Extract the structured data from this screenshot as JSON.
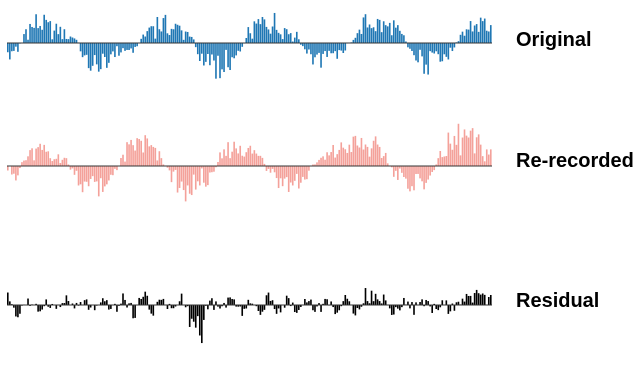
{
  "chart_data": {
    "type": "bar",
    "xlabel": "",
    "ylabel": "",
    "grid": false,
    "legend": "none",
    "x_range": [
      0,
      1
    ],
    "series": [
      {
        "name": "Original",
        "color": "#1f77b4",
        "ylim": [
          -1.3,
          1.0
        ],
        "profile": {
          "x": [
            0,
            0.02,
            0.04,
            0.06,
            0.08,
            0.1,
            0.12,
            0.14,
            0.16,
            0.18,
            0.2,
            0.22,
            0.24,
            0.26,
            0.28,
            0.3,
            0.32,
            0.34,
            0.36,
            0.38,
            0.4,
            0.42,
            0.44,
            0.46,
            0.48,
            0.5,
            0.52,
            0.54,
            0.56,
            0.58,
            0.6,
            0.62,
            0.64,
            0.66,
            0.68,
            0.7,
            0.72,
            0.74,
            0.76,
            0.78,
            0.8,
            0.82,
            0.84,
            0.86,
            0.88,
            0.9,
            0.92,
            0.94,
            0.96,
            0.98,
            1.0
          ],
          "y": [
            -0.45,
            -0.25,
            0.5,
            0.7,
            0.6,
            0.45,
            0.35,
            0.2,
            -0.6,
            -0.8,
            -0.6,
            -0.45,
            -0.3,
            -0.2,
            0.2,
            0.65,
            0.75,
            0.6,
            0.45,
            0.2,
            -0.5,
            -0.8,
            -0.9,
            -0.6,
            -0.3,
            0.4,
            0.65,
            0.8,
            0.65,
            0.45,
            0.2,
            -0.45,
            -0.65,
            -0.55,
            -0.4,
            -0.2,
            0.25,
            0.7,
            0.75,
            0.65,
            0.55,
            0.2,
            -0.4,
            -0.7,
            -0.8,
            -0.6,
            -0.3,
            0.3,
            0.65,
            0.75,
            0.6
          ]
        }
      },
      {
        "name": "Re-recorded",
        "color": "#f4a19a",
        "ylim": [
          -1.3,
          1.1
        ],
        "profile": {
          "x": [
            0,
            0.02,
            0.04,
            0.06,
            0.08,
            0.1,
            0.12,
            0.14,
            0.16,
            0.18,
            0.2,
            0.22,
            0.24,
            0.26,
            0.28,
            0.3,
            0.32,
            0.34,
            0.36,
            0.38,
            0.4,
            0.42,
            0.44,
            0.46,
            0.48,
            0.5,
            0.52,
            0.54,
            0.56,
            0.58,
            0.6,
            0.62,
            0.64,
            0.66,
            0.68,
            0.7,
            0.72,
            0.74,
            0.76,
            0.78,
            0.8,
            0.82,
            0.84,
            0.86,
            0.88,
            0.9,
            0.92,
            0.94,
            0.96,
            0.98,
            1.0
          ],
          "y": [
            -0.25,
            -0.2,
            0.3,
            0.45,
            0.35,
            0.2,
            0.15,
            -0.3,
            -0.55,
            -0.55,
            -0.5,
            -0.35,
            0.35,
            0.55,
            0.7,
            0.45,
            0.25,
            -0.3,
            -0.55,
            -0.7,
            -0.45,
            -0.35,
            0.25,
            0.45,
            0.6,
            0.45,
            0.35,
            -0.25,
            -0.5,
            -0.6,
            -0.5,
            -0.3,
            0.2,
            0.25,
            0.45,
            0.5,
            0.6,
            0.6,
            0.5,
            0.35,
            -0.25,
            -0.4,
            -0.5,
            -0.45,
            -0.3,
            0.4,
            0.65,
            0.85,
            0.7,
            0.5,
            0.4
          ]
        }
      },
      {
        "name": "Residual",
        "color": "#000000",
        "ylim": [
          -1.3,
          1.1
        ],
        "profile": {
          "x": [
            0,
            0.02,
            0.04,
            0.06,
            0.08,
            0.1,
            0.12,
            0.14,
            0.16,
            0.18,
            0.2,
            0.22,
            0.24,
            0.26,
            0.28,
            0.3,
            0.32,
            0.34,
            0.36,
            0.38,
            0.4,
            0.42,
            0.44,
            0.46,
            0.48,
            0.5,
            0.52,
            0.54,
            0.56,
            0.58,
            0.6,
            0.62,
            0.64,
            0.66,
            0.68,
            0.7,
            0.72,
            0.74,
            0.76,
            0.78,
            0.8,
            0.82,
            0.84,
            0.86,
            0.88,
            0.9,
            0.92,
            0.94,
            0.96,
            0.98,
            1.0
          ],
          "y": [
            0.35,
            -0.3,
            0.2,
            -0.35,
            0.25,
            -0.2,
            0.2,
            -0.15,
            0.15,
            -0.35,
            0.15,
            -0.15,
            0.2,
            -0.25,
            0.3,
            -0.2,
            0.2,
            -0.15,
            0.15,
            -0.5,
            -0.7,
            0.15,
            -0.2,
            0.3,
            -0.25,
            0.15,
            -0.25,
            0.2,
            -0.15,
            0.15,
            -0.2,
            0.2,
            -0.2,
            0.15,
            -0.2,
            0.15,
            -0.2,
            0.3,
            0.25,
            0.2,
            -0.25,
            0.15,
            -0.15,
            0.2,
            -0.2,
            0.15,
            -0.25,
            0.15,
            0.25,
            0.3,
            0.25
          ]
        }
      }
    ]
  }
}
